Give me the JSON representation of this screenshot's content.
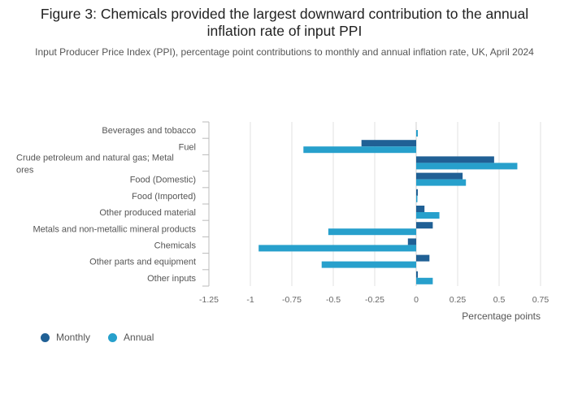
{
  "title": "Figure 3: Chemicals provided the largest downward contribution to the annual inflation rate of input PPI",
  "subtitle": "Input Producer Price Index (PPI), percentage point contributions to monthly and annual inflation rate, UK, April 2024",
  "chart_data": {
    "type": "bar",
    "orientation": "horizontal",
    "xlabel": "Percentage points",
    "ylabel": "",
    "xlim": [
      -1.25,
      0.75
    ],
    "xticks": [
      -1.25,
      -1,
      -0.75,
      -0.5,
      -0.25,
      0,
      0.25,
      0.5,
      0.75
    ],
    "xtick_labels": [
      "-1.25",
      "-1",
      "-0.75",
      "-0.5",
      "-0.25",
      "0",
      "0.25",
      "0.5",
      "0.75"
    ],
    "grid": "vertical",
    "legend_position": "bottom-left",
    "categories": [
      "Beverages and tobacco",
      "Fuel",
      "Crude petroleum and natural gas; Metal ores",
      "Food (Domestic)",
      "Food (Imported)",
      "Other produced material",
      "Metals and non-metallic mineral products",
      "Chemicals",
      "Other parts and equipment",
      "Other inputs"
    ],
    "series": [
      {
        "name": "Monthly",
        "color": "#206095",
        "values": [
          0.0,
          -0.33,
          0.47,
          0.28,
          0.01,
          0.05,
          0.1,
          -0.05,
          0.08,
          0.01
        ]
      },
      {
        "name": "Annual",
        "color": "#27a0cc",
        "values": [
          0.01,
          -0.68,
          0.61,
          0.3,
          0.0,
          0.14,
          -0.53,
          -0.95,
          -0.57,
          0.1
        ]
      }
    ]
  }
}
